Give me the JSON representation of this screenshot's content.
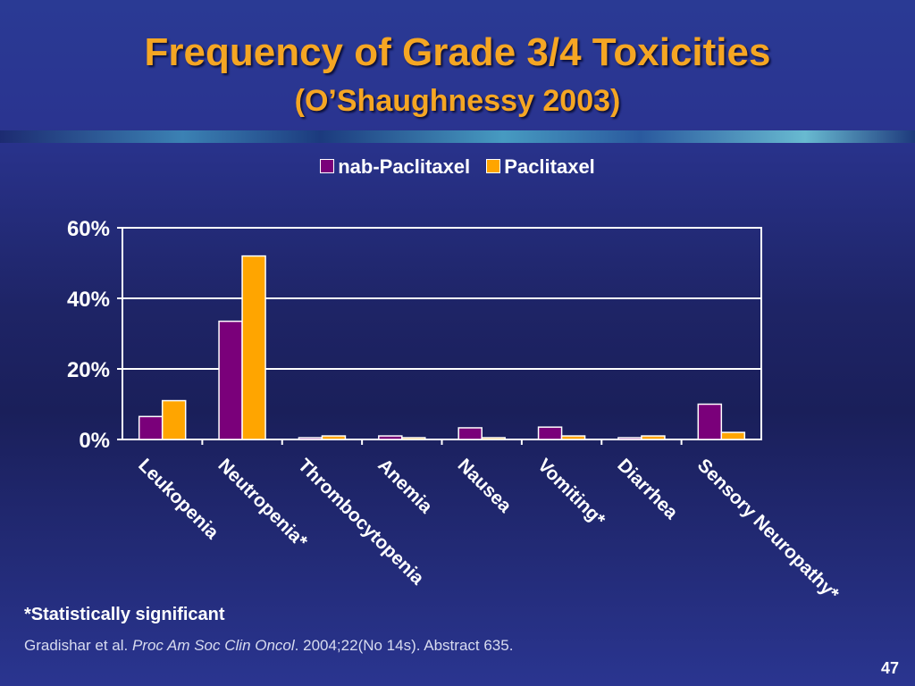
{
  "slide": {
    "title": "Frequency of Grade 3/4 Toxicities",
    "subtitle": "(O’Shaughnessy 2003)",
    "footnote": "*Statistically significant",
    "reference_prefix": "Gradishar et al. ",
    "reference_journal": "Proc Am Soc Clin Oncol",
    "reference_suffix": ". 2004;22(No 14s). Abstract 635.",
    "page_number": "47"
  },
  "chart_data": {
    "type": "bar",
    "categories": [
      "Leukopenia",
      "Neutropenia*",
      "Thrombocytopenia",
      "Anemia",
      "Nausea",
      "Vomiting*",
      "Diarrhea",
      "Sensory Neuropathy*"
    ],
    "series": [
      {
        "name": "nab-Paclitaxel",
        "color": "#7a007a",
        "values": [
          6.5,
          33.5,
          0.5,
          1.0,
          3.3,
          3.5,
          0.5,
          10.0
        ]
      },
      {
        "name": "Paclitaxel",
        "color": "#ffa500",
        "values": [
          11.0,
          52.0,
          1.0,
          0.5,
          0.5,
          1.0,
          1.0,
          2.0
        ]
      }
    ],
    "y_ticks": [
      {
        "value": 0,
        "label": "0%"
      },
      {
        "value": 20,
        "label": "20%"
      },
      {
        "value": 40,
        "label": "40%"
      },
      {
        "value": 60,
        "label": "60%"
      }
    ],
    "ylim": [
      0,
      60
    ],
    "grid": true,
    "legend_position": "top"
  }
}
